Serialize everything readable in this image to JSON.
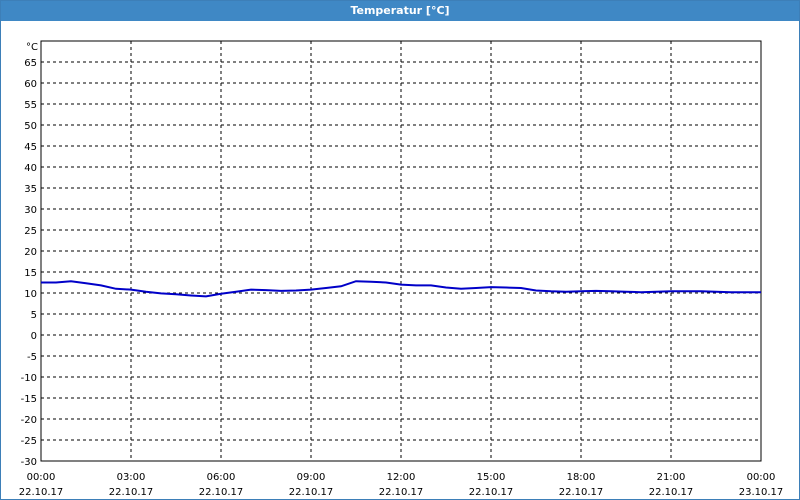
{
  "window": {
    "title": "Temperatur [°C]"
  },
  "chart_data": {
    "type": "line",
    "ylabel": "°C",
    "ylim": [
      -30,
      70
    ],
    "yticks": [
      65,
      60,
      55,
      50,
      45,
      40,
      35,
      30,
      25,
      20,
      15,
      10,
      5,
      0,
      -5,
      -10,
      -15,
      -20,
      -25,
      -30
    ],
    "xticks": [
      {
        "time": "00:00",
        "date": "22.10.17"
      },
      {
        "time": "03:00",
        "date": "22.10.17"
      },
      {
        "time": "06:00",
        "date": "22.10.17"
      },
      {
        "time": "09:00",
        "date": "22.10.17"
      },
      {
        "time": "12:00",
        "date": "22.10.17"
      },
      {
        "time": "15:00",
        "date": "22.10.17"
      },
      {
        "time": "18:00",
        "date": "22.10.17"
      },
      {
        "time": "21:00",
        "date": "22.10.17"
      },
      {
        "time": "00:00",
        "date": "23.10.17"
      }
    ],
    "grid": true,
    "line_color": "#0000c8",
    "series": [
      {
        "x": [
          "00:00",
          "00:30",
          "01:00",
          "01:30",
          "02:00",
          "02:30",
          "03:00",
          "03:30",
          "04:00",
          "04:30",
          "05:00",
          "05:30",
          "06:00",
          "06:30",
          "07:00",
          "07:30",
          "08:00",
          "08:30",
          "09:00",
          "09:30",
          "10:00",
          "10:30",
          "11:00",
          "11:30",
          "12:00",
          "12:30",
          "13:00",
          "13:30",
          "14:00",
          "14:30",
          "15:00",
          "15:30",
          "16:00",
          "16:30",
          "17:00",
          "17:30",
          "18:00",
          "18:30",
          "19:00",
          "19:30",
          "20:00",
          "20:30",
          "21:00",
          "21:30",
          "22:00",
          "22:30",
          "23:00",
          "23:30",
          "24:00"
        ],
        "values": [
          12.5,
          12.5,
          12.8,
          12.3,
          11.8,
          11.0,
          10.8,
          10.3,
          9.9,
          9.7,
          9.4,
          9.2,
          9.8,
          10.3,
          10.8,
          10.7,
          10.5,
          10.6,
          10.8,
          11.2,
          11.6,
          12.8,
          12.7,
          12.5,
          12.0,
          11.8,
          11.8,
          11.3,
          11.0,
          11.2,
          11.4,
          11.3,
          11.2,
          10.6,
          10.4,
          10.3,
          10.4,
          10.5,
          10.4,
          10.3,
          10.2,
          10.3,
          10.4,
          10.4,
          10.4,
          10.3,
          10.2,
          10.2,
          10.2
        ]
      }
    ]
  }
}
